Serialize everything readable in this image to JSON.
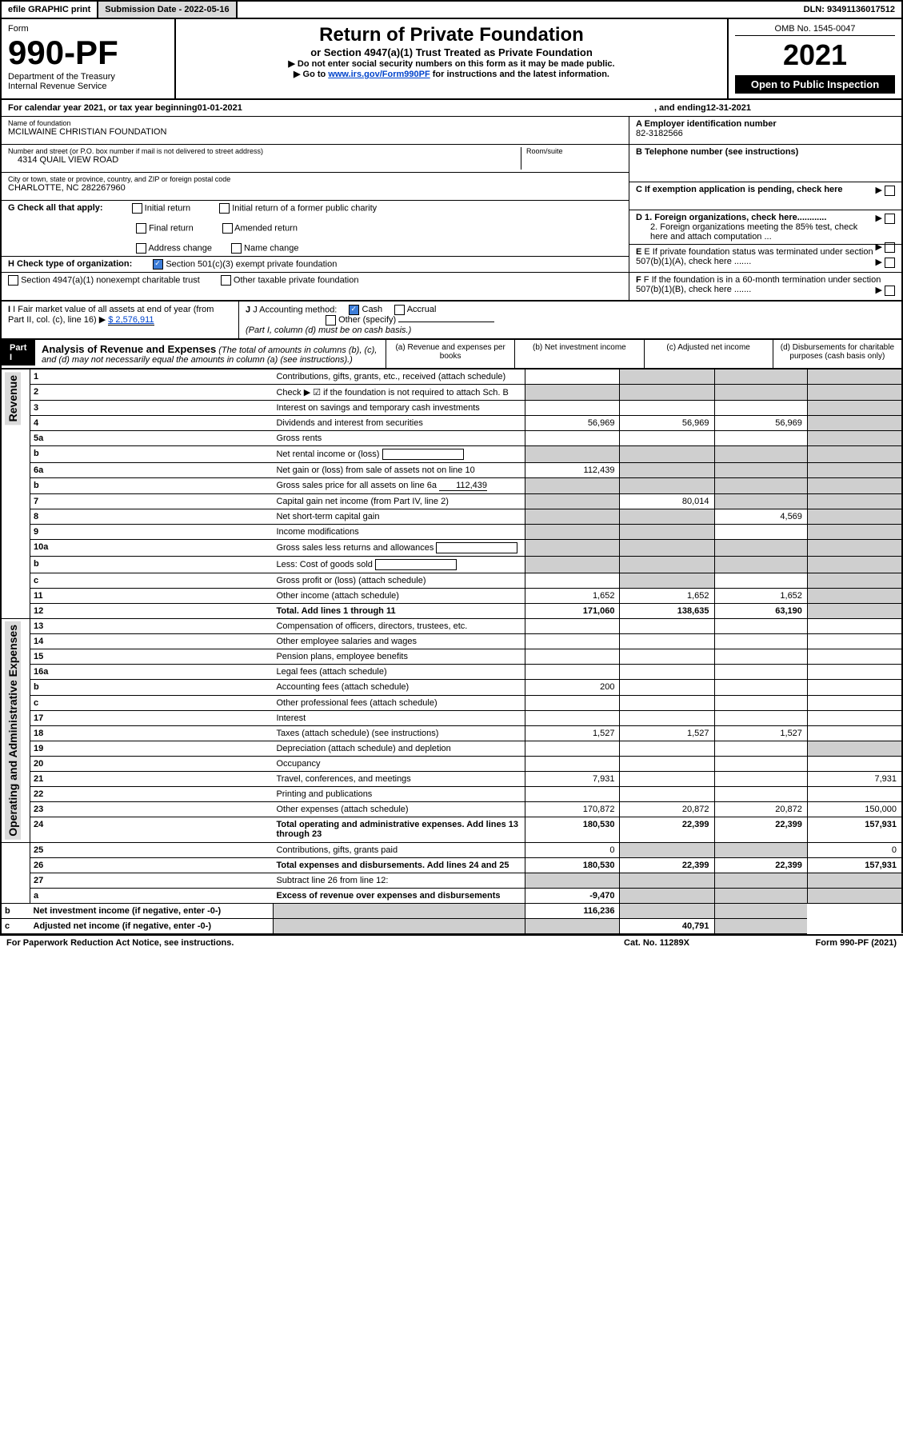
{
  "topbar": {
    "efile": "efile GRAPHIC print",
    "submission_label": "Submission Date - 2022-05-16",
    "dln": "DLN: 93491136017512"
  },
  "header": {
    "form_label": "Form",
    "form_number": "990-PF",
    "dept": "Department of the Treasury",
    "irs": "Internal Revenue Service",
    "title": "Return of Private Foundation",
    "subtitle": "or Section 4947(a)(1) Trust Treated as Private Foundation",
    "notice1": "▶ Do not enter social security numbers on this form as it may be made public.",
    "notice2_prefix": "▶ Go to ",
    "notice2_link": "www.irs.gov/Form990PF",
    "notice2_suffix": " for instructions and the latest information.",
    "omb": "OMB No. 1545-0047",
    "year": "2021",
    "open": "Open to Public Inspection"
  },
  "calendar": {
    "prefix": "For calendar year 2021, or tax year beginning ",
    "begin": "01-01-2021",
    "mid": ", and ending ",
    "end": "12-31-2021"
  },
  "entity": {
    "name_lbl": "Name of foundation",
    "name": "MCILWAINE CHRISTIAN FOUNDATION",
    "addr_lbl": "Number and street (or P.O. box number if mail is not delivered to street address)",
    "addr": "4314 QUAIL VIEW ROAD",
    "room_lbl": "Room/suite",
    "city_lbl": "City or town, state or province, country, and ZIP or foreign postal code",
    "city": "CHARLOTTE, NC 282267960",
    "a_lbl": "A Employer identification number",
    "a_val": "82-3182566",
    "b_lbl": "B Telephone number (see instructions)",
    "c_lbl": "C If exemption application is pending, check here",
    "d1_lbl": "D 1. Foreign organizations, check here............",
    "d2_lbl": "2. Foreign organizations meeting the 85% test, check here and attach computation ...",
    "e_lbl": "E  If private foundation status was terminated under section 507(b)(1)(A), check here .......",
    "f_lbl": "F  If the foundation is in a 60-month termination under section 507(b)(1)(B), check here .......",
    "g_lbl": "G Check all that apply:",
    "g_opts": {
      "initial": "Initial return",
      "initial_former": "Initial return of a former public charity",
      "final": "Final return",
      "amended": "Amended return",
      "address": "Address change",
      "name": "Name change"
    },
    "h_lbl": "H Check type of organization:",
    "h_501": "Section 501(c)(3) exempt private foundation",
    "h_4947": "Section 4947(a)(1) nonexempt charitable trust",
    "h_other": "Other taxable private foundation",
    "i_lbl": "I Fair market value of all assets at end of year (from Part II, col. (c), line 16) ▶",
    "i_val": "$  2,576,911",
    "j_lbl": "J Accounting method:",
    "j_cash": "Cash",
    "j_accrual": "Accrual",
    "j_other": "Other (specify)",
    "j_note": "(Part I, column (d) must be on cash basis.)"
  },
  "part1": {
    "label": "Part I",
    "title": "Analysis of Revenue and Expenses",
    "title_note": "(The total of amounts in columns (b), (c), and (d) may not necessarily equal the amounts in column (a) (see instructions).)",
    "col_a": "(a)  Revenue and expenses per books",
    "col_b": "(b)  Net investment income",
    "col_c": "(c)  Adjusted net income",
    "col_d": "(d)  Disbursements for charitable purposes (cash basis only)"
  },
  "sides": {
    "revenue": "Revenue",
    "opadmin": "Operating and Administrative Expenses"
  },
  "rows": [
    {
      "ln": "1",
      "desc": "Contributions, gifts, grants, etc., received (attach schedule)",
      "a": "",
      "b": "shade",
      "c": "shade",
      "d": "shade"
    },
    {
      "ln": "2",
      "desc": "Check ▶ ☑ if the foundation is not required to attach Sch. B",
      "a": "shade",
      "b": "shade",
      "c": "shade",
      "d": "shade",
      "bold_not": true
    },
    {
      "ln": "3",
      "desc": "Interest on savings and temporary cash investments",
      "a": "",
      "b": "",
      "c": "",
      "d": "shade"
    },
    {
      "ln": "4",
      "desc": "Dividends and interest from securities",
      "a": "56,969",
      "b": "56,969",
      "c": "56,969",
      "d": "shade"
    },
    {
      "ln": "5a",
      "desc": "Gross rents",
      "a": "",
      "b": "",
      "c": "",
      "d": "shade"
    },
    {
      "ln": "b",
      "desc": "Net rental income or (loss)",
      "a": "shade",
      "b": "shade",
      "c": "shade",
      "d": "shade",
      "inline_box": true
    },
    {
      "ln": "6a",
      "desc": "Net gain or (loss) from sale of assets not on line 10",
      "a": "112,439",
      "b": "shade",
      "c": "shade",
      "d": "shade"
    },
    {
      "ln": "b",
      "desc": "Gross sales price for all assets on line 6a",
      "a": "shade",
      "b": "shade",
      "c": "shade",
      "d": "shade",
      "inline_val": "112,439"
    },
    {
      "ln": "7",
      "desc": "Capital gain net income (from Part IV, line 2)",
      "a": "shade",
      "b": "80,014",
      "c": "shade",
      "d": "shade"
    },
    {
      "ln": "8",
      "desc": "Net short-term capital gain",
      "a": "shade",
      "b": "shade",
      "c": "4,569",
      "d": "shade"
    },
    {
      "ln": "9",
      "desc": "Income modifications",
      "a": "shade",
      "b": "shade",
      "c": "",
      "d": "shade"
    },
    {
      "ln": "10a",
      "desc": "Gross sales less returns and allowances",
      "a": "shade",
      "b": "shade",
      "c": "shade",
      "d": "shade",
      "inline_box": true
    },
    {
      "ln": "b",
      "desc": "Less: Cost of goods sold",
      "a": "shade",
      "b": "shade",
      "c": "shade",
      "d": "shade",
      "inline_box": true
    },
    {
      "ln": "c",
      "desc": "Gross profit or (loss) (attach schedule)",
      "a": "",
      "b": "shade",
      "c": "",
      "d": "shade"
    },
    {
      "ln": "11",
      "desc": "Other income (attach schedule)",
      "a": "1,652",
      "b": "1,652",
      "c": "1,652",
      "d": "shade"
    },
    {
      "ln": "12",
      "desc": "Total. Add lines 1 through 11",
      "a": "171,060",
      "b": "138,635",
      "c": "63,190",
      "d": "shade",
      "bold": true
    },
    {
      "ln": "13",
      "desc": "Compensation of officers, directors, trustees, etc.",
      "a": "",
      "b": "",
      "c": "",
      "d": ""
    },
    {
      "ln": "14",
      "desc": "Other employee salaries and wages",
      "a": "",
      "b": "",
      "c": "",
      "d": ""
    },
    {
      "ln": "15",
      "desc": "Pension plans, employee benefits",
      "a": "",
      "b": "",
      "c": "",
      "d": ""
    },
    {
      "ln": "16a",
      "desc": "Legal fees (attach schedule)",
      "a": "",
      "b": "",
      "c": "",
      "d": ""
    },
    {
      "ln": "b",
      "desc": "Accounting fees (attach schedule)",
      "a": "200",
      "b": "",
      "c": "",
      "d": ""
    },
    {
      "ln": "c",
      "desc": "Other professional fees (attach schedule)",
      "a": "",
      "b": "",
      "c": "",
      "d": ""
    },
    {
      "ln": "17",
      "desc": "Interest",
      "a": "",
      "b": "",
      "c": "",
      "d": ""
    },
    {
      "ln": "18",
      "desc": "Taxes (attach schedule) (see instructions)",
      "a": "1,527",
      "b": "1,527",
      "c": "1,527",
      "d": ""
    },
    {
      "ln": "19",
      "desc": "Depreciation (attach schedule) and depletion",
      "a": "",
      "b": "",
      "c": "",
      "d": "shade"
    },
    {
      "ln": "20",
      "desc": "Occupancy",
      "a": "",
      "b": "",
      "c": "",
      "d": ""
    },
    {
      "ln": "21",
      "desc": "Travel, conferences, and meetings",
      "a": "7,931",
      "b": "",
      "c": "",
      "d": "7,931"
    },
    {
      "ln": "22",
      "desc": "Printing and publications",
      "a": "",
      "b": "",
      "c": "",
      "d": ""
    },
    {
      "ln": "23",
      "desc": "Other expenses (attach schedule)",
      "a": "170,872",
      "b": "20,872",
      "c": "20,872",
      "d": "150,000"
    },
    {
      "ln": "24",
      "desc": "Total operating and administrative expenses. Add lines 13 through 23",
      "a": "180,530",
      "b": "22,399",
      "c": "22,399",
      "d": "157,931",
      "bold": true
    },
    {
      "ln": "25",
      "desc": "Contributions, gifts, grants paid",
      "a": "0",
      "b": "shade",
      "c": "shade",
      "d": "0"
    },
    {
      "ln": "26",
      "desc": "Total expenses and disbursements. Add lines 24 and 25",
      "a": "180,530",
      "b": "22,399",
      "c": "22,399",
      "d": "157,931",
      "bold": true
    },
    {
      "ln": "27",
      "desc": "Subtract line 26 from line 12:",
      "a": "shade",
      "b": "shade",
      "c": "shade",
      "d": "shade"
    },
    {
      "ln": "a",
      "desc": "Excess of revenue over expenses and disbursements",
      "a": "-9,470",
      "b": "shade",
      "c": "shade",
      "d": "shade",
      "bold": true
    },
    {
      "ln": "b",
      "desc": "Net investment income (if negative, enter -0-)",
      "a": "shade",
      "b": "116,236",
      "c": "shade",
      "d": "shade",
      "bold": true
    },
    {
      "ln": "c",
      "desc": "Adjusted net income (if negative, enter -0-)",
      "a": "shade",
      "b": "shade",
      "c": "40,791",
      "d": "shade",
      "bold": true
    }
  ],
  "footer": {
    "left": "For Paperwork Reduction Act Notice, see instructions.",
    "mid": "Cat. No. 11289X",
    "right": "Form 990-PF (2021)"
  }
}
